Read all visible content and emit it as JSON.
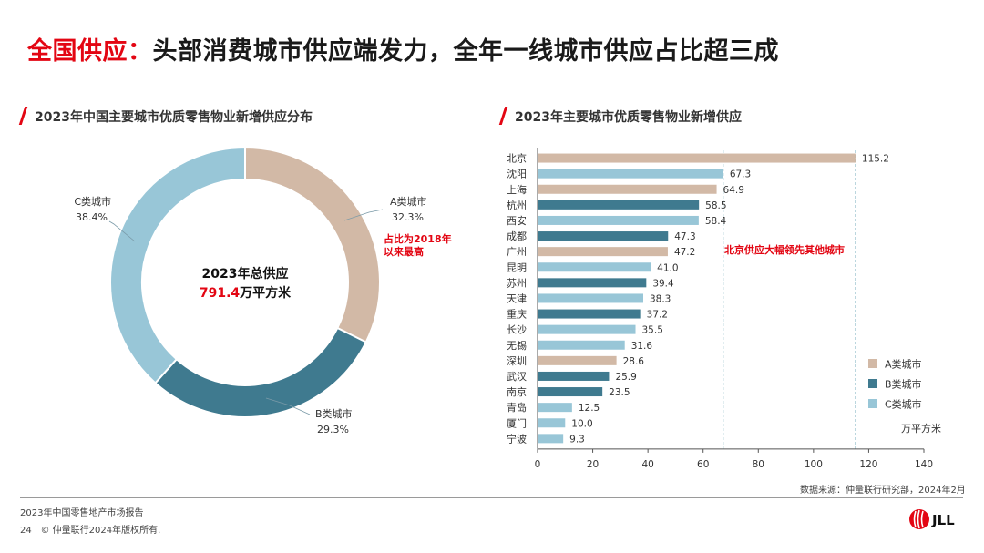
{
  "header": {
    "title_red": "全国供应：",
    "title_rest": "头部消费城市供应端发力，全年一线城市供应占比超三成"
  },
  "left": {
    "subtitle": "2023年中国主要城市优质零售物业新增供应分布",
    "center_line1": "2023年总供应",
    "center_value": "791.4",
    "center_unit": "万平方米",
    "note_line1": "占比为2018年",
    "note_line2": "以来最高"
  },
  "right": {
    "subtitle": "2023年主要城市优质零售物业新增供应",
    "annotation": "北京供应大幅领先其他城市",
    "unit": "万平方米",
    "source": "数据来源：仲量联行研究部，2024年2月"
  },
  "footer": {
    "report": "2023年中国零售地产市场报告",
    "page": "24",
    "copyright": "© 仲量联行2024年版权所有.",
    "logo_text": "JLL"
  },
  "colors": {
    "A": "#d2b9a6",
    "B": "#3f7a8f",
    "C": "#98c6d7",
    "accent": "#e30613"
  },
  "chart_data": [
    {
      "type": "pie",
      "title": "2023年中国主要城市优质零售物业新增供应分布",
      "slices": [
        {
          "label": "A类城市",
          "value": 32.3,
          "value_label": "32.3%"
        },
        {
          "label": "B类城市",
          "value": 29.3,
          "value_label": "29.3%"
        },
        {
          "label": "C类城市",
          "value": 38.4,
          "value_label": "38.4%"
        }
      ]
    },
    {
      "type": "bar",
      "orientation": "horizontal",
      "title": "2023年主要城市优质零售物业新增供应",
      "xlabel": "万平方米",
      "xlim": [
        0,
        140
      ],
      "xticks": [
        0,
        20,
        40,
        60,
        80,
        100,
        120,
        140
      ],
      "categories": [
        "北京",
        "沈阳",
        "上海",
        "杭州",
        "西安",
        "成都",
        "广州",
        "昆明",
        "苏州",
        "天津",
        "重庆",
        "长沙",
        "无锡",
        "深圳",
        "武汉",
        "南京",
        "青岛",
        "厦门",
        "宁波"
      ],
      "values": [
        115.2,
        67.3,
        64.9,
        58.5,
        58.4,
        47.3,
        47.2,
        41.0,
        39.4,
        38.3,
        37.2,
        35.5,
        31.6,
        28.6,
        25.9,
        23.5,
        12.5,
        10.0,
        9.3
      ],
      "value_labels": [
        "115.2",
        "67.3",
        "64.9",
        "58.5",
        "58.4",
        "47.3",
        "47.2",
        "41.0",
        "39.4",
        "38.3",
        "37.2",
        "35.5",
        "31.6",
        "28.6",
        "25.9",
        "23.5",
        "12.5",
        "10.0",
        "9.3"
      ],
      "tiers": [
        "A",
        "C",
        "A",
        "B",
        "C",
        "B",
        "A",
        "C",
        "B",
        "C",
        "B",
        "C",
        "C",
        "A",
        "B",
        "B",
        "C",
        "C",
        "C"
      ],
      "reference_lines": [
        67.3,
        115.2
      ],
      "legend": [
        {
          "key": "A",
          "label": "A类城市"
        },
        {
          "key": "B",
          "label": "B类城市"
        },
        {
          "key": "C",
          "label": "C类城市"
        }
      ],
      "legend_position": "bottom-right"
    }
  ]
}
